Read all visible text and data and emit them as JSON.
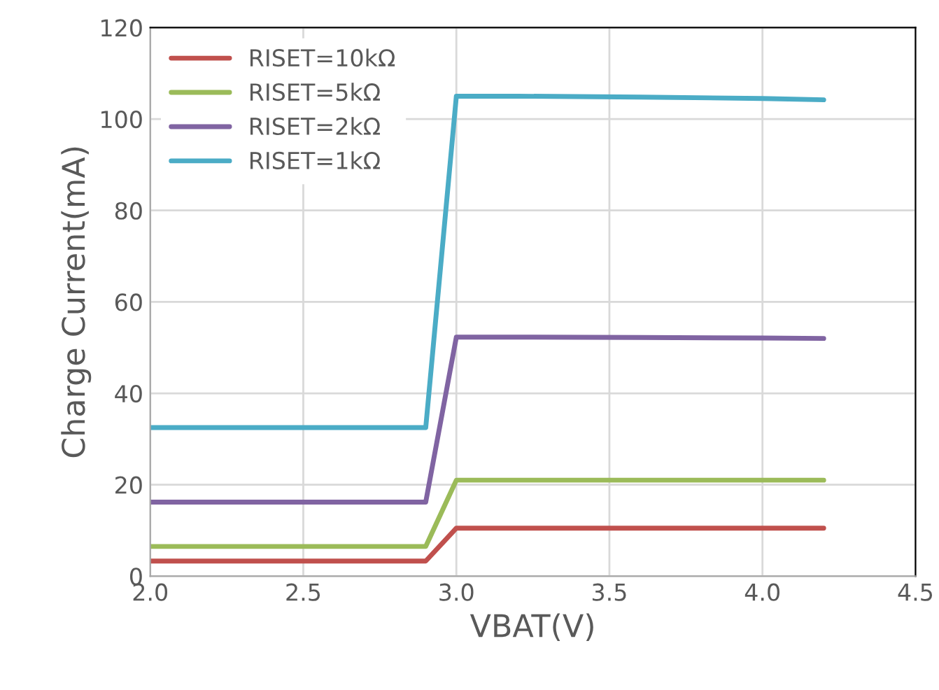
{
  "chart_data": {
    "type": "line",
    "xlabel": "VBAT(V)",
    "ylabel": "Charge Current(mA)",
    "x": [
      2.0,
      2.9,
      3.0,
      3.2,
      3.6,
      4.0,
      4.2
    ],
    "series": [
      {
        "name": "RISET=10kΩ",
        "color": "#c0504d",
        "values": [
          3.3,
          3.3,
          10.5,
          10.5,
          10.5,
          10.5,
          10.5
        ]
      },
      {
        "name": "RISET=5kΩ",
        "color": "#9bbb59",
        "values": [
          6.5,
          6.5,
          21,
          21,
          21,
          21,
          21
        ]
      },
      {
        "name": "RISET=2kΩ",
        "color": "#8064a2",
        "values": [
          16.2,
          16.2,
          52.3,
          52.3,
          52.2,
          52.1,
          52.0
        ]
      },
      {
        "name": "RISET=1kΩ",
        "color": "#4bacc6",
        "values": [
          32.5,
          32.5,
          105,
          105,
          104.8,
          104.5,
          104.2
        ]
      }
    ],
    "xlim": [
      2.0,
      4.5
    ],
    "xticks": [
      {
        "value": 2.0,
        "label": "2.0"
      },
      {
        "value": 2.5,
        "label": "2.5"
      },
      {
        "value": 3.0,
        "label": "3.0"
      },
      {
        "value": 3.5,
        "label": "3.5"
      },
      {
        "value": 4.0,
        "label": "4.0"
      },
      {
        "value": 4.5,
        "label": "4.5"
      }
    ],
    "ylim": [
      0,
      120
    ],
    "yticks": [
      0,
      20,
      40,
      60,
      80,
      100,
      120
    ],
    "grid": true,
    "legend": "top left",
    "marker": "none",
    "line_style": "solid"
  }
}
